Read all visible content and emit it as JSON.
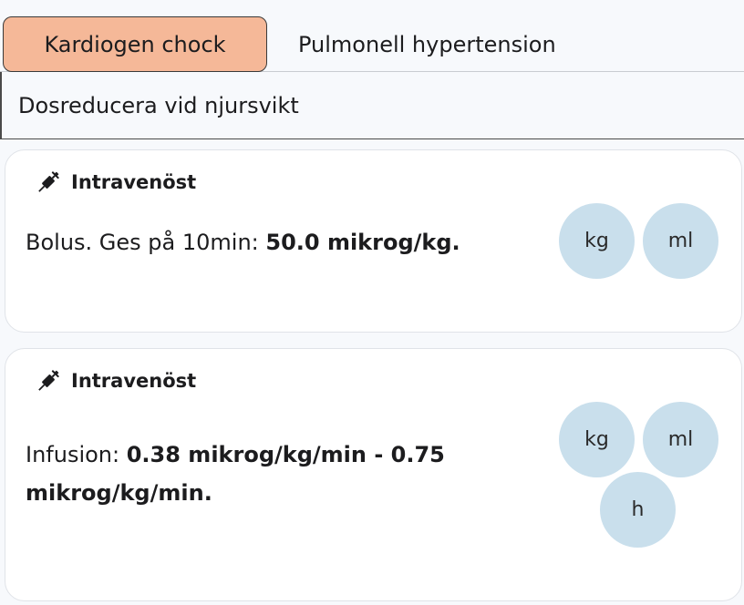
{
  "tabs": [
    {
      "label": "Kardiogen chock",
      "active": true
    },
    {
      "label": "Pulmonell hypertension",
      "active": false
    }
  ],
  "notice": "Dosreducera vid njursvikt",
  "cards": [
    {
      "route": "Intravenöst",
      "route_icon": "syringe-icon",
      "dose_prefix": "Bolus. Ges på 10min: ",
      "dose_value": "50.0 mikrog/kg.",
      "buttons": [
        "kg",
        "ml"
      ]
    },
    {
      "route": "Intravenöst",
      "route_icon": "syringe-icon",
      "dose_prefix": "Infusion: ",
      "dose_value": "0.38 mikrog/kg/min - 0.75 mikrog/kg/min.",
      "buttons": [
        "kg",
        "ml",
        "h"
      ]
    }
  ],
  "colors": {
    "active_tab": "#f5b898",
    "unit_button": "#c9dfec",
    "background": "#f7f9fc"
  }
}
